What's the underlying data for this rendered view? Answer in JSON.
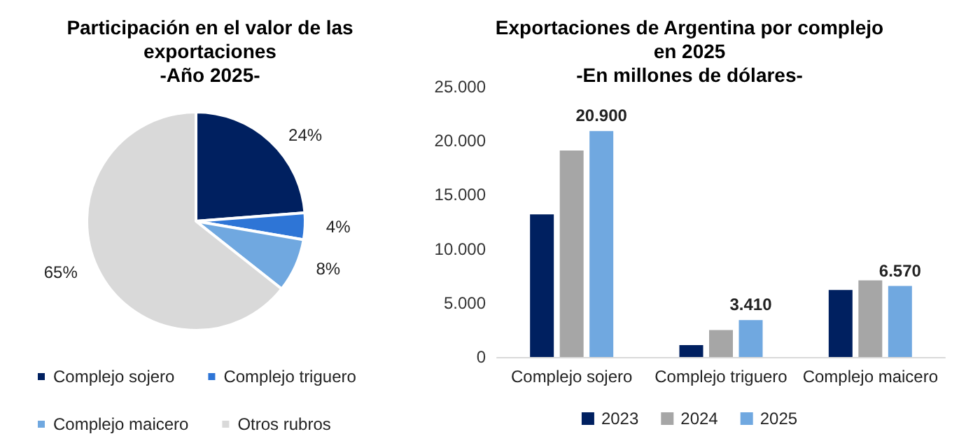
{
  "chart_data": [
    {
      "type": "pie",
      "title": "Participación en el valor de las\nexportaciones\n-Año 2025-",
      "categories": [
        "Complejo sojero",
        "Complejo triguero",
        "Complejo maicero",
        "Otros rubros"
      ],
      "values": [
        24,
        4,
        8,
        65
      ],
      "colors": [
        "#002060",
        "#2e75d6",
        "#70a8e0",
        "#d9d9d9"
      ],
      "value_labels": [
        "24%",
        "4%",
        "8%",
        "65%"
      ],
      "legend": "bottom"
    },
    {
      "type": "bar",
      "title": "Exportaciones de Argentina por complejo\nen 2025\n-En millones de dólares-",
      "categories": [
        "Complejo sojero",
        "Complejo triguero",
        "Complejo maicero"
      ],
      "series": [
        {
          "name": "2023",
          "color": "#002060",
          "values": [
            13200,
            1100,
            6200
          ]
        },
        {
          "name": "2024",
          "color": "#a6a6a6",
          "values": [
            19100,
            2500,
            7100
          ]
        },
        {
          "name": "2025",
          "color": "#70a8e0",
          "values": [
            20900,
            3410,
            6570
          ],
          "value_labels": [
            "20.900",
            "3.410",
            "6.570"
          ]
        }
      ],
      "ylim": [
        0,
        25000
      ],
      "yticks": [
        {
          "value": 0,
          "label": "0"
        },
        {
          "value": 5000,
          "label": "5.000"
        },
        {
          "value": 10000,
          "label": "10.000"
        },
        {
          "value": 15000,
          "label": "15.000"
        },
        {
          "value": 20000,
          "label": "20.000"
        },
        {
          "value": 25000,
          "label": "25.000"
        }
      ],
      "grid": false,
      "legend": "bottom"
    }
  ]
}
